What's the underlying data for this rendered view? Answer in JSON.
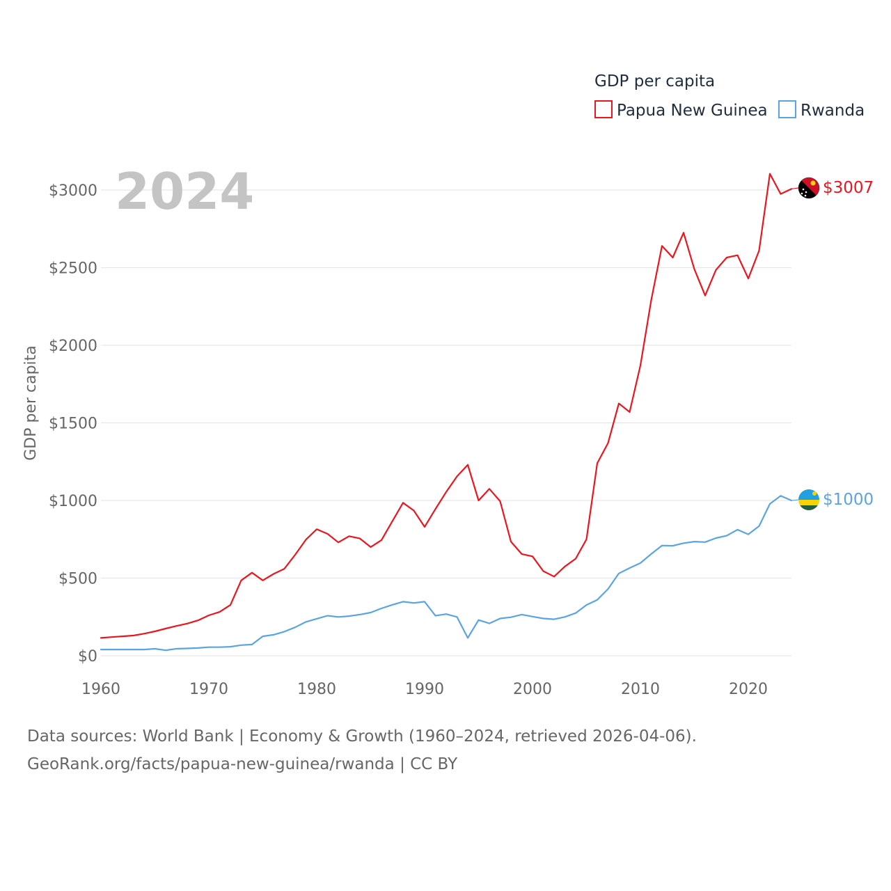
{
  "chart_data": {
    "type": "line",
    "title": "GDP per capita",
    "ylabel": "GDP per capita",
    "xlabel": "",
    "year_label": "2024",
    "xlim": [
      1960,
      2024
    ],
    "ylim": [
      0,
      3000
    ],
    "x_ticks": [
      1960,
      1970,
      1980,
      1990,
      2000,
      2010,
      2020
    ],
    "y_ticks": [
      {
        "value": 0,
        "label": "$0"
      },
      {
        "value": 500,
        "label": "$500"
      },
      {
        "value": 1000,
        "label": "$1000"
      },
      {
        "value": 1500,
        "label": "$1500"
      },
      {
        "value": 2000,
        "label": "$2000"
      },
      {
        "value": 2500,
        "label": "$2500"
      },
      {
        "value": 3000,
        "label": "$3000"
      }
    ],
    "x": [
      1960,
      1961,
      1962,
      1963,
      1964,
      1965,
      1966,
      1967,
      1968,
      1969,
      1970,
      1971,
      1972,
      1973,
      1974,
      1975,
      1976,
      1977,
      1978,
      1979,
      1980,
      1981,
      1982,
      1983,
      1984,
      1985,
      1986,
      1987,
      1988,
      1989,
      1990,
      1991,
      1992,
      1993,
      1994,
      1995,
      1996,
      1997,
      1998,
      1999,
      2000,
      2001,
      2002,
      2003,
      2004,
      2005,
      2006,
      2007,
      2008,
      2009,
      2010,
      2011,
      2012,
      2013,
      2014,
      2015,
      2016,
      2017,
      2018,
      2019,
      2020,
      2021,
      2022,
      2023,
      2024
    ],
    "series": [
      {
        "name": "Papua New Guinea",
        "color": "#e8171f",
        "end_label": "$3007",
        "values": [
          115,
          120,
          125,
          130,
          142,
          157,
          175,
          192,
          207,
          228,
          260,
          282,
          327,
          485,
          535,
          485,
          527,
          560,
          650,
          748,
          815,
          785,
          730,
          770,
          755,
          700,
          745,
          865,
          985,
          935,
          830,
          945,
          1055,
          1155,
          1230,
          1000,
          1075,
          995,
          735,
          655,
          640,
          545,
          510,
          575,
          625,
          750,
          1240,
          1370,
          1625,
          1570,
          1870,
          2290,
          2640,
          2565,
          2725,
          2490,
          2320,
          2485,
          2565,
          2580,
          2430,
          2610,
          3105,
          2975,
          3007
        ]
      },
      {
        "name": "Rwanda",
        "color": "#5ba4e0",
        "end_label": "$1000",
        "values": [
          40,
          40,
          40,
          40,
          40,
          45,
          35,
          45,
          47,
          50,
          55,
          55,
          58,
          68,
          72,
          125,
          135,
          155,
          183,
          218,
          238,
          258,
          250,
          255,
          265,
          278,
          305,
          328,
          348,
          340,
          348,
          258,
          268,
          250,
          115,
          230,
          208,
          240,
          248,
          265,
          252,
          240,
          235,
          250,
          275,
          327,
          360,
          430,
          530,
          565,
          597,
          655,
          710,
          708,
          725,
          735,
          732,
          758,
          773,
          812,
          782,
          835,
          978,
          1030,
          1000
        ]
      }
    ],
    "legend_position": "top-right"
  },
  "footer": {
    "line1": "Data sources: World Bank | Economy & Growth (1960–2024, retrieved 2026-04-06).",
    "line2": "GeoRank.org/facts/papua-new-guinea/rwanda | CC BY"
  }
}
